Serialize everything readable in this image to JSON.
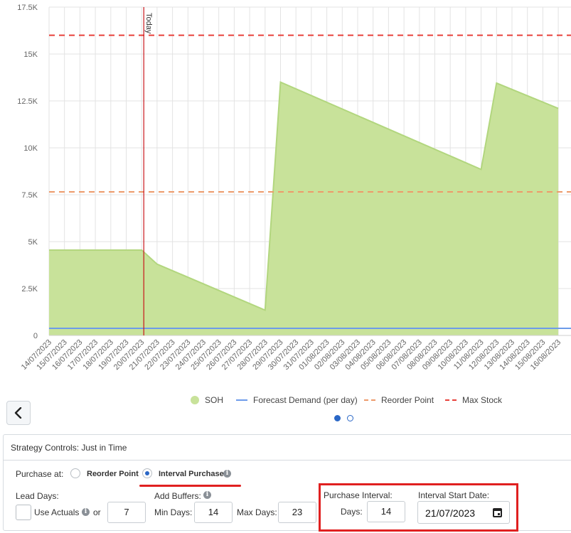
{
  "chart_data": {
    "type": "area",
    "x": [
      "14/07/2023",
      "15/07/2023",
      "16/07/2023",
      "17/07/2023",
      "18/07/2023",
      "19/07/2023",
      "20/07/2023",
      "21/07/2023",
      "22/07/2023",
      "23/07/2023",
      "24/07/2023",
      "25/07/2023",
      "26/07/2023",
      "27/07/2023",
      "28/07/2023",
      "29/07/2023",
      "30/07/2023",
      "31/07/2023",
      "01/08/2023",
      "02/08/2023",
      "03/08/2023",
      "04/08/2023",
      "05/08/2023",
      "06/08/2023",
      "07/08/2023",
      "08/08/2023",
      "09/08/2023",
      "10/08/2023",
      "11/08/2023",
      "12/08/2023",
      "13/08/2023",
      "14/08/2023",
      "15/08/2023",
      "16/08/2023"
    ],
    "ylim": [
      0,
      17500
    ],
    "yticks": [
      {
        "value": 0,
        "label": "0"
      },
      {
        "value": 2500,
        "label": "2.5K"
      },
      {
        "value": 5000,
        "label": "5K"
      },
      {
        "value": 7500,
        "label": "7.5K"
      },
      {
        "value": 10000,
        "label": "10K"
      },
      {
        "value": 12500,
        "label": "12.5K"
      },
      {
        "value": 15000,
        "label": "15K"
      },
      {
        "value": 17500,
        "label": "17.5K"
      }
    ],
    "grid": true,
    "today_marker": {
      "x": "20/07/2023",
      "label": "Today"
    },
    "series": [
      {
        "name": "SOH",
        "kind": "area",
        "color": "#c8e29a",
        "edge_color": "#b2d67e",
        "points": [
          [
            "14/07/2023",
            4550
          ],
          [
            "20/07/2023",
            4550
          ],
          [
            "21/07/2023",
            3800
          ],
          [
            "28/07/2023",
            1350
          ],
          [
            "29/07/2023",
            13500
          ],
          [
            "11/08/2023",
            8850
          ],
          [
            "12/08/2023",
            13450
          ],
          [
            "16/08/2023",
            12100
          ]
        ]
      },
      {
        "name": "Forecast Demand (per day)",
        "kind": "line",
        "color": "#6d9bea",
        "value": 380
      },
      {
        "name": "Reorder Point",
        "kind": "dash",
        "color": "#ed9a6a",
        "value": 7650
      },
      {
        "name": "Max Stock",
        "kind": "dash",
        "color": "#e8403a",
        "value": 16000
      }
    ]
  },
  "legend": {
    "soh": "SOH",
    "forecast": "Forecast Demand (per day)",
    "reorder": "Reorder Point",
    "max_stock": "Max Stock"
  },
  "controls": {
    "back_icon": "chevron-left-icon",
    "title": "Strategy Controls: Just in Time",
    "purchase_at_label": "Purchase at:",
    "reorder_point_option": "Reorder Point",
    "interval_purchases_option": "Interval Purchases",
    "selected_option": "Interval Purchases",
    "lead_days_label": "Lead Days:",
    "use_actuals_label": "Use Actuals",
    "or_label": "or",
    "lead_days_value": "7",
    "add_buffers_label": "Add Buffers:",
    "min_days_label": "Min Days:",
    "min_days_value": "14",
    "max_days_label": "Max Days:",
    "max_days_value": "23",
    "purchase_interval_label": "Purchase Interval:",
    "days_label": "Days:",
    "days_value": "14",
    "interval_start_label": "Interval Start Date:",
    "interval_start_value": "21/07/2023",
    "info_icon": "info-icon",
    "calendar_icon": "calendar-icon",
    "highlight_color": "#e02020"
  }
}
